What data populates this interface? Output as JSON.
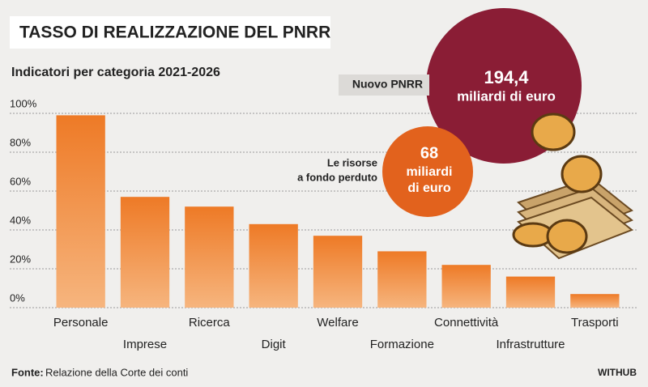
{
  "chart_data": {
    "type": "bar",
    "title": "TASSO DI REALIZZAZIONE DEL PNRR",
    "subtitle": "Indicatori per categoria 2021-2026",
    "categories": [
      "Personale",
      "Imprese",
      "Ricerca",
      "Digit",
      "Welfare",
      "Formazione",
      "Connettività",
      "Infrastrutture",
      "Trasporti"
    ],
    "values": [
      99,
      57,
      52,
      43,
      37,
      29,
      22,
      16,
      7
    ],
    "color": "#ef7f2c",
    "ylim": [
      0,
      100
    ],
    "yticks": [
      {
        "value": 0,
        "label": "0%"
      },
      {
        "value": 20,
        "label": "20%"
      },
      {
        "value": 40,
        "label": "40%"
      },
      {
        "value": 60,
        "label": "60%"
      },
      {
        "value": 80,
        "label": "80%"
      },
      {
        "value": 100,
        "label": "100%"
      }
    ],
    "grid": true,
    "annotations": {
      "big_label": "Nuovo PNRR",
      "big_value": "194,4",
      "big_unit": "miliardi di euro",
      "small_label": [
        "Le risorse",
        "a fondo perduto"
      ],
      "small_value": "68",
      "small_unit": [
        "miliardi",
        "di euro"
      ]
    },
    "source_label": "Fonte:",
    "source": "Relazione della Corte dei conti",
    "brand": "WITHUB"
  }
}
